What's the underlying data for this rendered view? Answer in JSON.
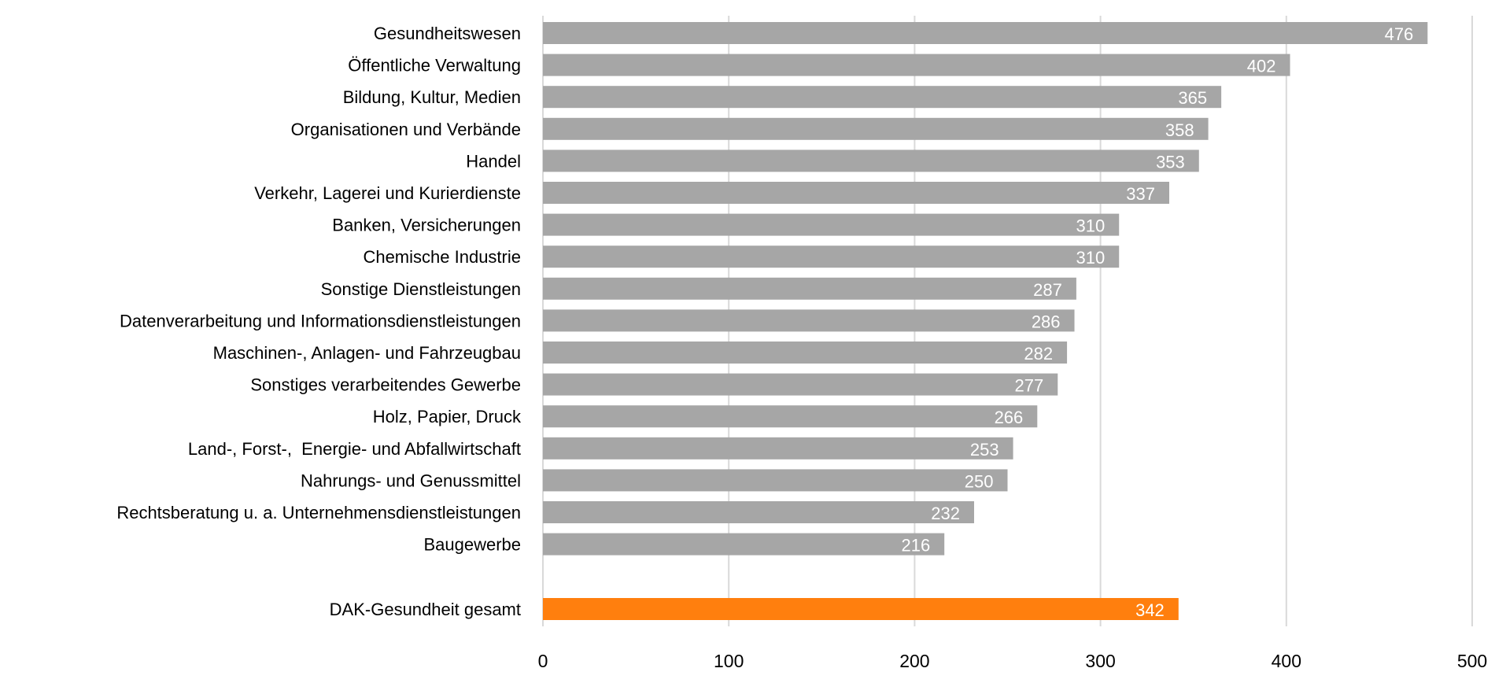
{
  "chart_data": {
    "type": "bar",
    "orientation": "horizontal",
    "title": "",
    "xlabel": "",
    "ylabel": "",
    "xlim": [
      0,
      500
    ],
    "ticks": [
      "0",
      "100",
      "200",
      "300",
      "400",
      "500"
    ],
    "grid": "vertical",
    "categories": [
      "Gesundheitswesen",
      "Öffentliche Verwaltung",
      "Bildung, Kultur, Medien",
      "Organisationen und Verbände",
      "Handel",
      "Verkehr, Lagerei und Kurierdienste",
      "Banken, Versicherungen",
      "Chemische Industrie",
      "Sonstige Dienstleistungen",
      "Datenverarbeitung und Informationsdienstleistungen",
      "Maschinen-, Anlagen- und Fahrzeugbau",
      "Sonstiges verarbeitendes Gewerbe",
      "Holz, Papier, Druck",
      "Land-, Forst-,  Energie- und Abfallwirtschaft",
      "Nahrungs- und Genussmittel",
      "Rechtsberatung u. a. Unternehmensdienstleistungen",
      "Baugewerbe"
    ],
    "values": [
      476,
      402,
      365,
      358,
      353,
      337,
      310,
      310,
      287,
      286,
      282,
      277,
      266,
      253,
      250,
      232,
      216
    ],
    "total": {
      "label": "DAK-Gesundheit gesamt",
      "value": 342
    },
    "colors": {
      "bar": "#a6a6a6",
      "total_bar": "#ff7f0e",
      "value_label": "#ffffff",
      "grid": "#d9d9d9"
    }
  }
}
